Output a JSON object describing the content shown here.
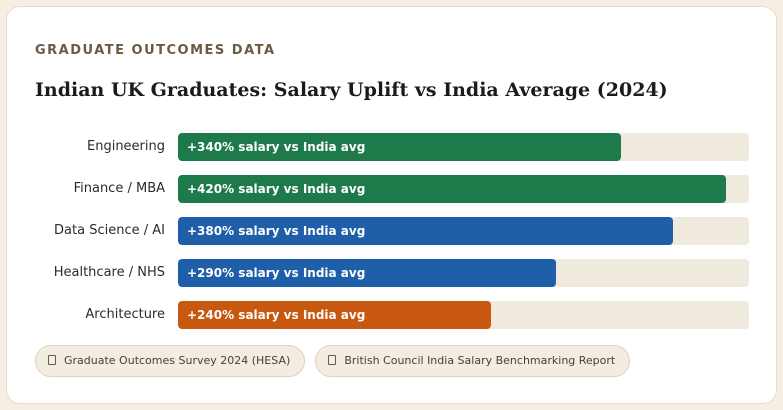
{
  "header": {
    "eyebrow": "GRADUATE OUTCOMES DATA",
    "title": "Indian UK Graduates: Salary Uplift vs India Average (2024)"
  },
  "colors": {
    "green": "#1e7a4a",
    "blue": "#1f5ea8",
    "orange": "#c8570f",
    "track": "#efe9de"
  },
  "chart_data": {
    "type": "bar",
    "orientation": "horizontal",
    "title": "Indian UK Graduates: Salary Uplift vs India Average (2024)",
    "categories": [
      "Engineering",
      "Finance / MBA",
      "Data Science / AI",
      "Healthcare / NHS",
      "Architecture"
    ],
    "values": [
      340,
      420,
      380,
      290,
      240
    ],
    "unit": "% salary vs India avg",
    "xlim": [
      0,
      438
    ],
    "bar_labels": [
      "+340% salary vs India avg",
      "+420% salary vs India avg",
      "+380% salary vs India avg",
      "+290% salary vs India avg",
      "+240% salary vs India avg"
    ],
    "bar_colors": [
      "#1e7a4a",
      "#1e7a4a",
      "#1f5ea8",
      "#1f5ea8",
      "#c8570f"
    ]
  },
  "sources": [
    {
      "icon": "document-icon",
      "label": "Graduate Outcomes Survey 2024 (HESA)"
    },
    {
      "icon": "document-icon",
      "label": "British Council India Salary Benchmarking Report"
    }
  ]
}
